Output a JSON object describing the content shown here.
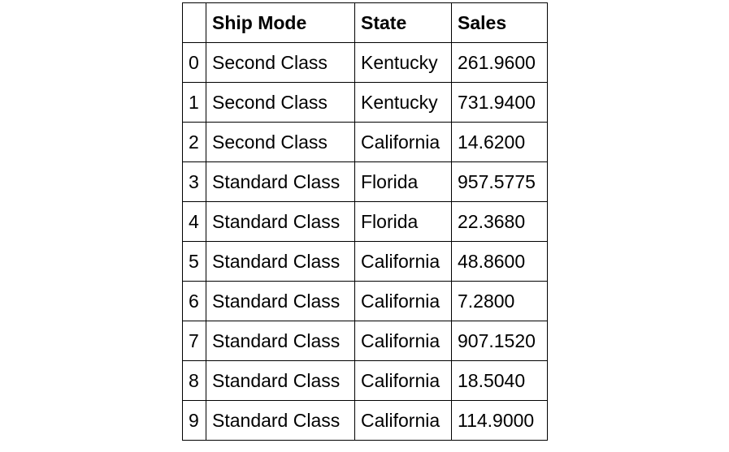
{
  "table": {
    "columns": [
      "",
      "Ship Mode",
      "State",
      "Sales"
    ],
    "rows": [
      {
        "index": "0",
        "ship_mode": "Second Class",
        "state": "Kentucky",
        "sales": "261.9600"
      },
      {
        "index": "1",
        "ship_mode": "Second Class",
        "state": "Kentucky",
        "sales": "731.9400"
      },
      {
        "index": "2",
        "ship_mode": "Second Class",
        "state": "California",
        "sales": "14.6200"
      },
      {
        "index": "3",
        "ship_mode": "Standard Class",
        "state": "Florida",
        "sales": "957.5775"
      },
      {
        "index": "4",
        "ship_mode": "Standard Class",
        "state": "Florida",
        "sales": "22.3680"
      },
      {
        "index": "5",
        "ship_mode": "Standard Class",
        "state": "California",
        "sales": "48.8600"
      },
      {
        "index": "6",
        "ship_mode": "Standard Class",
        "state": "California",
        "sales": "7.2800"
      },
      {
        "index": "7",
        "ship_mode": "Standard Class",
        "state": "California",
        "sales": "907.1520"
      },
      {
        "index": "8",
        "ship_mode": "Standard Class",
        "state": "California",
        "sales": "18.5040"
      },
      {
        "index": "9",
        "ship_mode": "Standard Class",
        "state": "California",
        "sales": "114.9000"
      }
    ]
  }
}
